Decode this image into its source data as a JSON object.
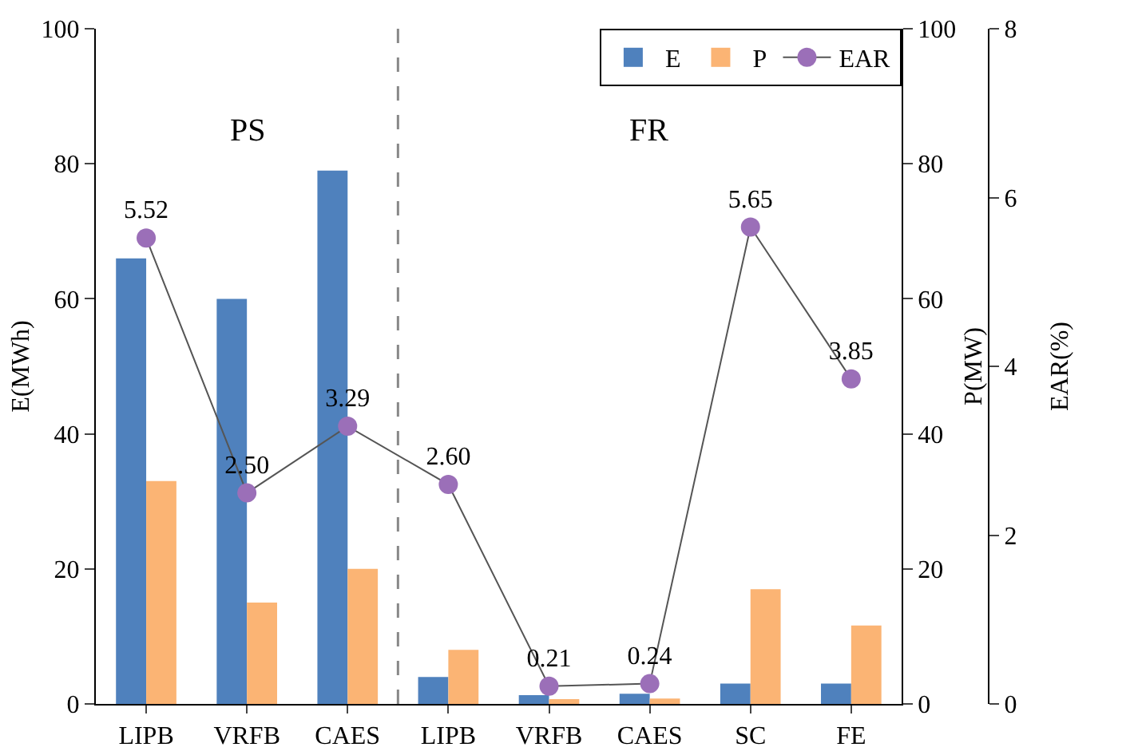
{
  "chart_data": {
    "type": "bar",
    "categories": [
      "LIPB",
      "VRFB",
      "CAES",
      "LIPB",
      "VRFB",
      "CAES",
      "SC",
      "FE"
    ],
    "ylabel": "E(MWh)",
    "y2label": "P(MW)",
    "y3label": "EAR(%)",
    "ylim": [
      0,
      100
    ],
    "yticks": [
      0,
      20,
      40,
      60,
      80,
      100
    ],
    "y2lim": [
      0,
      100
    ],
    "y2ticks": [
      0,
      20,
      40,
      60,
      80,
      100
    ],
    "y3lim": [
      0,
      8
    ],
    "y3ticks": [
      0,
      2,
      4,
      6,
      8
    ],
    "series": [
      {
        "name": "E",
        "color": "#4f81bd",
        "values": [
          66,
          60,
          79,
          4,
          1.3,
          1.5,
          3,
          3
        ]
      },
      {
        "name": "P",
        "axis": "y2",
        "color": "#fbb474",
        "values": [
          33,
          15,
          20,
          8,
          0.7,
          0.8,
          17,
          11.6
        ]
      },
      {
        "name": "EAR",
        "type": "line",
        "axis": "y3",
        "color": "#9b6fb8",
        "marker": "circle",
        "values": [
          5.52,
          2.5,
          3.29,
          2.6,
          0.21,
          0.24,
          5.65,
          3.85
        ],
        "value_labels": [
          "5.52",
          "2.50",
          "3.29",
          "2.60",
          "0.21",
          "0.24",
          "5.65",
          "3.85"
        ]
      }
    ],
    "annotations": [
      "PS",
      "FR"
    ],
    "legend": "top right",
    "grid": false
  }
}
